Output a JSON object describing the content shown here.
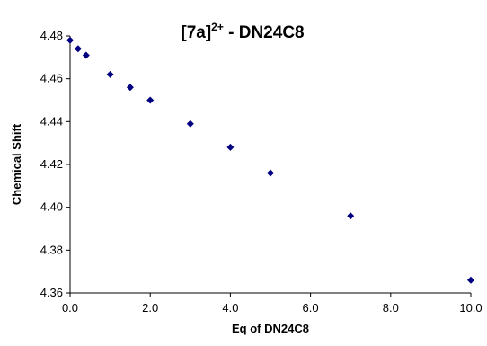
{
  "chart_data": {
    "type": "scatter",
    "title": "[7a]",
    "title_superscript": "2+",
    "title_suffix": " - DN24C8",
    "xlabel": "Eq of DN24C8",
    "ylabel": "Chemical Shift",
    "xlim": [
      0,
      10
    ],
    "ylim": [
      4.36,
      4.48
    ],
    "x_ticks": [
      "0.0",
      "2.0",
      "4.0",
      "6.0",
      "8.0",
      "10.0"
    ],
    "y_ticks": [
      "4.36",
      "4.38",
      "4.40",
      "4.42",
      "4.44",
      "4.46",
      "4.48"
    ],
    "grid": false,
    "legend": "none",
    "marker": "diamond",
    "marker_color": "#000080",
    "series": [
      {
        "x": [
          0.0,
          0.2,
          0.4,
          1.0,
          1.5,
          2.0,
          3.0,
          4.0,
          5.0,
          7.0,
          10.0
        ],
        "y": [
          4.478,
          4.474,
          4.471,
          4.462,
          4.456,
          4.45,
          4.439,
          4.428,
          4.416,
          4.396,
          4.366
        ]
      }
    ]
  }
}
